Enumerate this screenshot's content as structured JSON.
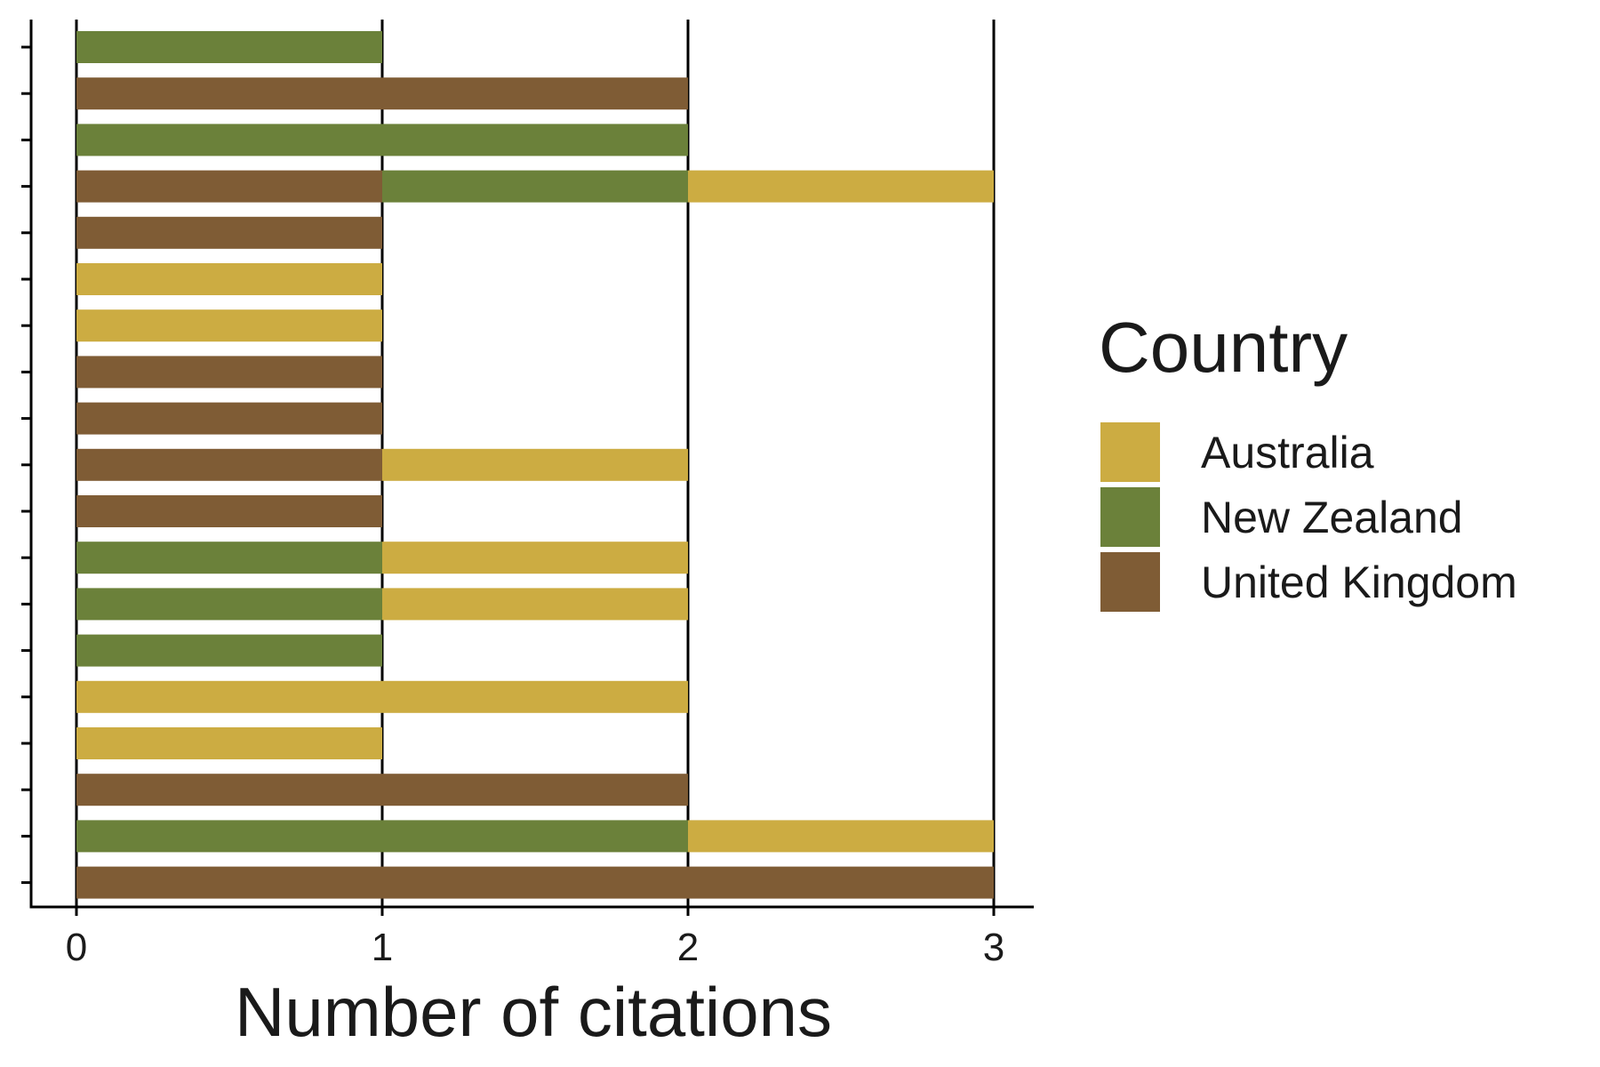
{
  "chart_data": {
    "type": "bar",
    "orientation": "horizontal",
    "stacked": true,
    "xlabel": "Number of citations",
    "ylabel": "",
    "xlim": [
      0,
      3
    ],
    "x_ticks": [
      "0",
      "1",
      "2",
      "3"
    ],
    "grid": "vertical major gridlines",
    "legend": {
      "title": "Country",
      "placement": "right",
      "entries": [
        "Australia",
        "New Zealand",
        "United Kingdom"
      ]
    },
    "colors": {
      "Australia": "#ccac42",
      "New Zealand": "#6b813a",
      "United Kingdom": "#7f5c35"
    },
    "rows": [
      [
        {
          "country": "New Zealand",
          "value": 1
        }
      ],
      [
        {
          "country": "United Kingdom",
          "value": 2
        }
      ],
      [
        {
          "country": "New Zealand",
          "value": 2
        }
      ],
      [
        {
          "country": "United Kingdom",
          "value": 1
        },
        {
          "country": "New Zealand",
          "value": 1
        },
        {
          "country": "Australia",
          "value": 1
        }
      ],
      [
        {
          "country": "United Kingdom",
          "value": 1
        }
      ],
      [
        {
          "country": "Australia",
          "value": 1
        }
      ],
      [
        {
          "country": "Australia",
          "value": 1
        }
      ],
      [
        {
          "country": "United Kingdom",
          "value": 1
        }
      ],
      [
        {
          "country": "United Kingdom",
          "value": 1
        }
      ],
      [
        {
          "country": "United Kingdom",
          "value": 1
        },
        {
          "country": "Australia",
          "value": 1
        }
      ],
      [
        {
          "country": "United Kingdom",
          "value": 1
        }
      ],
      [
        {
          "country": "New Zealand",
          "value": 1
        },
        {
          "country": "Australia",
          "value": 1
        }
      ],
      [
        {
          "country": "New Zealand",
          "value": 1
        },
        {
          "country": "Australia",
          "value": 1
        }
      ],
      [
        {
          "country": "New Zealand",
          "value": 1
        }
      ],
      [
        {
          "country": "Australia",
          "value": 2
        }
      ],
      [
        {
          "country": "Australia",
          "value": 1
        }
      ],
      [
        {
          "country": "United Kingdom",
          "value": 2
        }
      ],
      [
        {
          "country": "New Zealand",
          "value": 2
        },
        {
          "country": "Australia",
          "value": 1
        }
      ],
      [
        {
          "country": "United Kingdom",
          "value": 3
        }
      ]
    ]
  }
}
